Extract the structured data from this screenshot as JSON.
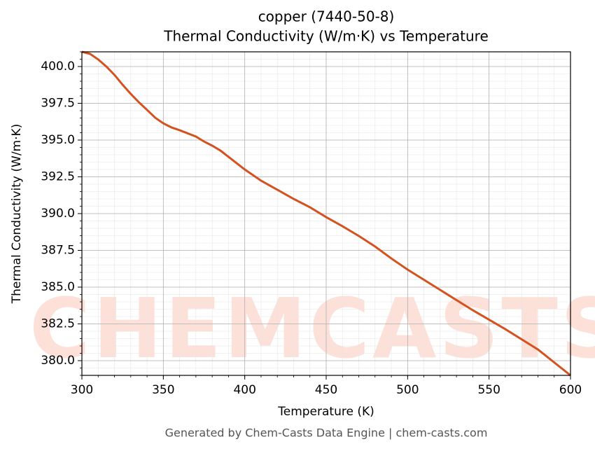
{
  "chart_data": {
    "type": "line",
    "title": "copper (7440-50-8)",
    "subtitle": "Thermal Conductivity (W/m·K) vs Temperature",
    "x_label": "Temperature (K)",
    "y_label": "Thermal Conductivity (W/m·K)",
    "footer": "Generated by Chem-Casts Data Engine | chem-casts.com",
    "watermark": "CHEMCASTS",
    "x": [
      300,
      305,
      310,
      315,
      320,
      325,
      330,
      335,
      340,
      345,
      350,
      355,
      360,
      370,
      375,
      380,
      385,
      390,
      400,
      410,
      420,
      430,
      440,
      450,
      460,
      470,
      480,
      490,
      500,
      520,
      540,
      560,
      580,
      600
    ],
    "series": [
      {
        "name": "Thermal Conductivity",
        "color": "#d4521f",
        "values": [
          401.0,
          400.86,
          400.48,
          400.0,
          399.43,
          398.76,
          398.14,
          397.57,
          397.05,
          396.52,
          396.14,
          395.86,
          395.67,
          395.24,
          394.9,
          394.62,
          394.29,
          393.86,
          393.0,
          392.24,
          391.62,
          391.0,
          390.43,
          389.76,
          389.14,
          388.48,
          387.76,
          386.95,
          386.19,
          384.81,
          383.43,
          382.14,
          380.76,
          379.0
        ]
      }
    ],
    "xlim": [
      300,
      600
    ],
    "ylim": [
      379,
      401
    ],
    "xticks": [
      300,
      350,
      400,
      450,
      500,
      550,
      600
    ],
    "yticks": [
      {
        "value": 380,
        "label": "380.0"
      },
      {
        "value": 382.5,
        "label": "382.5"
      },
      {
        "value": 385,
        "label": "385.0"
      },
      {
        "value": 387.5,
        "label": "387.5"
      },
      {
        "value": 390,
        "label": "390.0"
      },
      {
        "value": 392.5,
        "label": "392.5"
      },
      {
        "value": 395,
        "label": "395.0"
      },
      {
        "value": 397.5,
        "label": "397.5"
      },
      {
        "value": 400,
        "label": "400.0"
      }
    ],
    "grid": true,
    "minor_grid": true
  }
}
